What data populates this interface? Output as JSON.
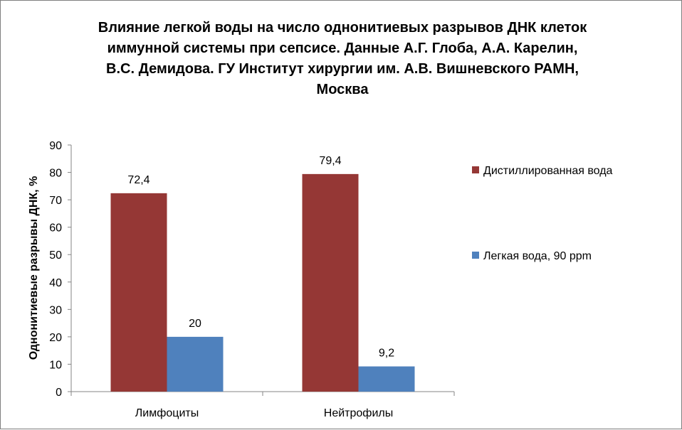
{
  "chart_data": {
    "type": "bar",
    "title_lines": [
      "Влияние легкой воды на число однонитиевых разрывов ДНК клеток",
      "иммунной системы при сепсисе. Данные А.Г. Глоба, А.А. Карелин,",
      "В.С. Демидова. ГУ Институт хирургии им. А.В. Вишневского РАМН,",
      "Москва"
    ],
    "xlabel": "",
    "ylabel": "Однонитиевые разрывы ДНК, %",
    "categories": [
      "Лимфоциты",
      "Нейтрофилы"
    ],
    "series": [
      {
        "name": "Дистиллированная вода",
        "color": "#953735",
        "values": [
          72.4,
          79.4
        ],
        "labels": [
          "72,4",
          "79,4"
        ]
      },
      {
        "name": "Легкая вода, 90 ppm",
        "color": "#4f81bd",
        "values": [
          20,
          9.2
        ],
        "labels": [
          "20",
          "9,2"
        ]
      }
    ],
    "ylim": [
      0,
      90
    ],
    "yticks": [
      "0",
      "10",
      "20",
      "30",
      "40",
      "50",
      "60",
      "70",
      "80",
      "90"
    ],
    "grid": false,
    "legend_position": "right"
  }
}
